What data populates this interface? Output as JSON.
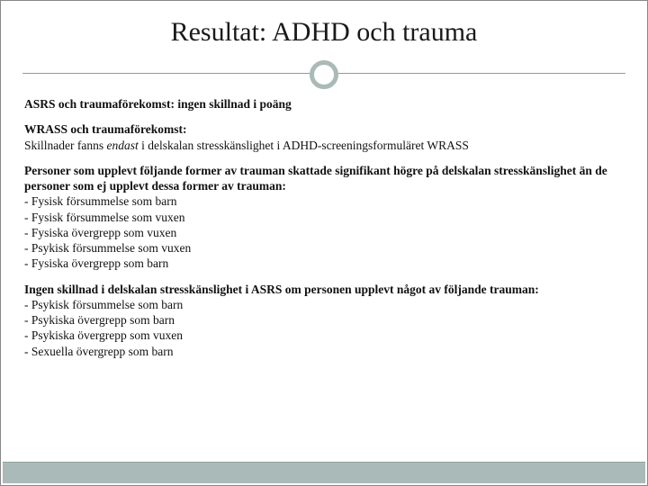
{
  "colors": {
    "accent": "#a9bab8",
    "line": "#999999",
    "text": "#111111",
    "border": "#888888",
    "background": "#ffffff"
  },
  "typography": {
    "title_family": "Georgia, serif",
    "body_family": "Georgia, 'Times New Roman', serif",
    "title_size_pt": 22,
    "body_size_pt": 10
  },
  "title": "Resultat: ADHD och trauma",
  "sections": [
    {
      "heading": "ASRS och traumaförekomst: ingen skillnad i poäng",
      "body": null,
      "list": null
    },
    {
      "heading": "WRASS och traumaförekomst:",
      "body_prefix": "Skillnader fanns ",
      "body_italic": "endast",
      "body_suffix": " i delskalan stresskänslighet i ADHD-screeningsformuläret WRASS",
      "list": null
    },
    {
      "heading": "Personer som upplevt följande former av trauman skattade signifikant högre på delskalan stresskänslighet än de personer som ej upplevt dessa former av trauman:",
      "body": null,
      "list": [
        "- Fysisk försummelse som barn",
        "- Fysisk försummelse som vuxen",
        "- Fysiska övergrepp som vuxen",
        "- Psykisk försummelse som vuxen",
        "- Fysiska övergrepp som barn"
      ]
    },
    {
      "heading": "Ingen skillnad i delskalan stresskänslighet i ASRS om personen upplevt något av följande trauman:",
      "body": null,
      "list": [
        "- Psykisk försummelse som barn",
        "- Psykiska övergrepp som barn",
        "- Psykiska övergrepp som vuxen",
        "- Sexuella övergrepp som barn"
      ]
    }
  ]
}
